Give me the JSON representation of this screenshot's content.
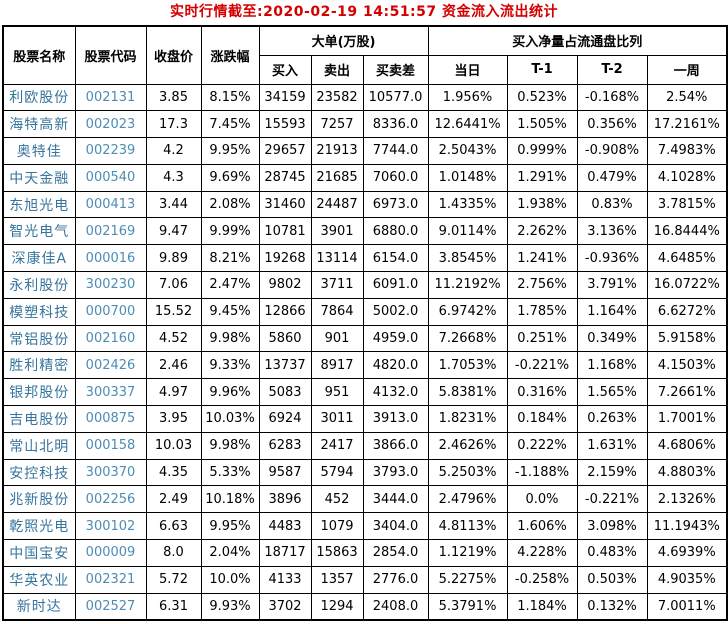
{
  "title": "实时行情截至:2020-02-19 14:51:57 资金流入流出统计",
  "colors": {
    "title": "#d40000",
    "stock_name": "#36749d",
    "stock_code": "#4d8cb5",
    "text": "#000000",
    "border": "#000000",
    "background": "#ffffff"
  },
  "table": {
    "headers": {
      "name": "股票名称",
      "code": "股票代码",
      "close": "收盘价",
      "change": "涨跌幅",
      "big_order_group": "大单(万股)",
      "buy": "买入",
      "sell": "卖出",
      "diff": "买卖差",
      "ratio_group": "买入净量占流通盘比列",
      "today": "当日",
      "t1": "T-1",
      "t2": "T-2",
      "week": "一周"
    },
    "rows": [
      [
        "利欧股份",
        "002131",
        "3.85",
        "8.15%",
        "34159",
        "23582",
        "10577.0",
        "1.956%",
        "0.523%",
        "-0.168%",
        "2.54%"
      ],
      [
        "海特高新",
        "002023",
        "17.3",
        "7.45%",
        "15593",
        "7257",
        "8336.0",
        "12.6441%",
        "1.505%",
        "0.356%",
        "17.2161%"
      ],
      [
        "奥特佳",
        "002239",
        "4.2",
        "9.95%",
        "29657",
        "21913",
        "7744.0",
        "2.5043%",
        "0.999%",
        "-0.908%",
        "7.4983%"
      ],
      [
        "中天金融",
        "000540",
        "4.3",
        "9.69%",
        "28745",
        "21685",
        "7060.0",
        "1.0148%",
        "1.291%",
        "0.479%",
        "4.1028%"
      ],
      [
        "东旭光电",
        "000413",
        "3.44",
        "2.08%",
        "31460",
        "24487",
        "6973.0",
        "1.4335%",
        "1.938%",
        "0.83%",
        "3.7815%"
      ],
      [
        "智光电气",
        "002169",
        "9.47",
        "9.99%",
        "10781",
        "3901",
        "6880.0",
        "9.0114%",
        "2.262%",
        "3.136%",
        "16.8444%"
      ],
      [
        "深康佳A",
        "000016",
        "9.89",
        "8.21%",
        "19268",
        "13114",
        "6154.0",
        "3.8545%",
        "1.241%",
        "-0.936%",
        "4.6485%"
      ],
      [
        "永利股份",
        "300230",
        "7.06",
        "2.47%",
        "9802",
        "3711",
        "6091.0",
        "11.2192%",
        "2.756%",
        "3.791%",
        "16.0722%"
      ],
      [
        "模塑科技",
        "000700",
        "15.52",
        "9.45%",
        "12866",
        "7864",
        "5002.0",
        "6.9742%",
        "1.785%",
        "1.164%",
        "6.6272%"
      ],
      [
        "常铝股份",
        "002160",
        "4.52",
        "9.98%",
        "5860",
        "901",
        "4959.0",
        "7.2668%",
        "0.251%",
        "0.349%",
        "5.9158%"
      ],
      [
        "胜利精密",
        "002426",
        "2.46",
        "9.33%",
        "13737",
        "8917",
        "4820.0",
        "1.7053%",
        "-0.221%",
        "1.168%",
        "4.1503%"
      ],
      [
        "银邦股份",
        "300337",
        "4.97",
        "9.96%",
        "5083",
        "951",
        "4132.0",
        "5.8381%",
        "0.316%",
        "1.565%",
        "7.2661%"
      ],
      [
        "吉电股份",
        "000875",
        "3.95",
        "10.03%",
        "6924",
        "3011",
        "3913.0",
        "1.8231%",
        "0.184%",
        "0.263%",
        "1.7001%"
      ],
      [
        "常山北明",
        "000158",
        "10.03",
        "9.98%",
        "6283",
        "2417",
        "3866.0",
        "2.4626%",
        "0.222%",
        "1.631%",
        "4.6806%"
      ],
      [
        "安控科技",
        "300370",
        "4.35",
        "5.33%",
        "9587",
        "5794",
        "3793.0",
        "5.2503%",
        "-1.188%",
        "2.159%",
        "4.8803%"
      ],
      [
        "兆新股份",
        "002256",
        "2.49",
        "10.18%",
        "3896",
        "452",
        "3444.0",
        "2.4796%",
        "0.0%",
        "-0.221%",
        "2.1326%"
      ],
      [
        "乾照光电",
        "300102",
        "6.63",
        "9.95%",
        "4483",
        "1079",
        "3404.0",
        "4.8113%",
        "1.606%",
        "3.098%",
        "11.1943%"
      ],
      [
        "中国宝安",
        "000009",
        "8.0",
        "2.04%",
        "18717",
        "15863",
        "2854.0",
        "1.1219%",
        "4.228%",
        "0.483%",
        "4.6939%"
      ],
      [
        "华英农业",
        "002321",
        "5.72",
        "10.0%",
        "4133",
        "1357",
        "2776.0",
        "5.2275%",
        "-0.258%",
        "0.503%",
        "4.9035%"
      ],
      [
        "新时达",
        "002527",
        "6.31",
        "9.93%",
        "3702",
        "1294",
        "2408.0",
        "5.3791%",
        "1.184%",
        "0.132%",
        "7.0011%"
      ]
    ]
  }
}
